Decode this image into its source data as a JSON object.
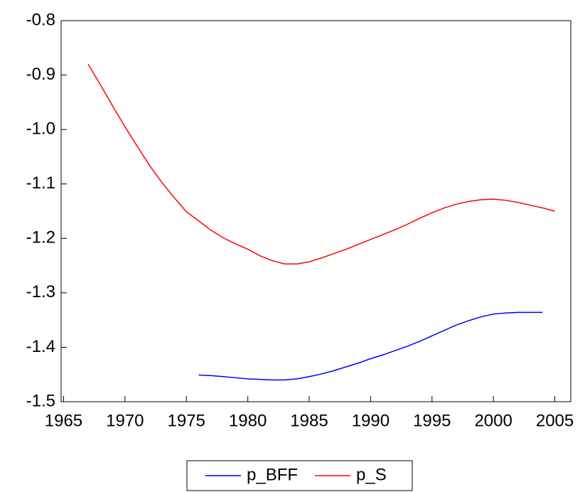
{
  "chart_data": {
    "type": "line",
    "x": [
      1967,
      1968,
      1969,
      1970,
      1971,
      1972,
      1973,
      1974,
      1975,
      1976,
      1977,
      1978,
      1979,
      1980,
      1981,
      1982,
      1983,
      1984,
      1985,
      1986,
      1987,
      1988,
      1989,
      1990,
      1991,
      1992,
      1993,
      1994,
      1995,
      1996,
      1997,
      1998,
      1999,
      2000,
      2001,
      2002,
      2003,
      2004,
      2005
    ],
    "series": [
      {
        "name": "p_BFF",
        "color": "#0000ff",
        "values": [
          null,
          null,
          null,
          null,
          null,
          null,
          null,
          null,
          null,
          -1.451,
          -1.452,
          -1.454,
          -1.456,
          -1.458,
          -1.459,
          -1.46,
          -1.46,
          -1.458,
          -1.454,
          -1.449,
          -1.443,
          -1.436,
          -1.429,
          -1.421,
          -1.414,
          -1.406,
          -1.398,
          -1.389,
          -1.379,
          -1.369,
          -1.359,
          -1.351,
          -1.344,
          -1.339,
          -1.337,
          -1.336,
          -1.336,
          -1.336,
          null
        ]
      },
      {
        "name": "p_S",
        "color": "#ff0000",
        "values": [
          -0.88,
          -0.918,
          -0.957,
          -0.995,
          -1.031,
          -1.066,
          -1.097,
          -1.125,
          -1.151,
          -1.168,
          -1.185,
          -1.199,
          -1.21,
          -1.22,
          -1.232,
          -1.241,
          -1.247,
          -1.247,
          -1.243,
          -1.236,
          -1.228,
          -1.22,
          -1.211,
          -1.202,
          -1.193,
          -1.184,
          -1.174,
          -1.163,
          -1.153,
          -1.144,
          -1.137,
          -1.132,
          -1.129,
          -1.128,
          -1.13,
          -1.134,
          -1.139,
          -1.144,
          -1.15
        ]
      }
    ],
    "xlim": [
      1964.8,
      2006.3
    ],
    "xticks": [
      1965,
      1970,
      1975,
      1980,
      1985,
      1990,
      1995,
      2000,
      2005
    ],
    "ylim": [
      -1.5,
      -0.8
    ],
    "yticks": [
      -1.5,
      -1.4,
      -1.3,
      -1.2,
      -1.1,
      {
        "value": -1.0,
        "label": "-1.0"
      },
      -0.9,
      -0.8
    ],
    "legend": "bottom"
  }
}
